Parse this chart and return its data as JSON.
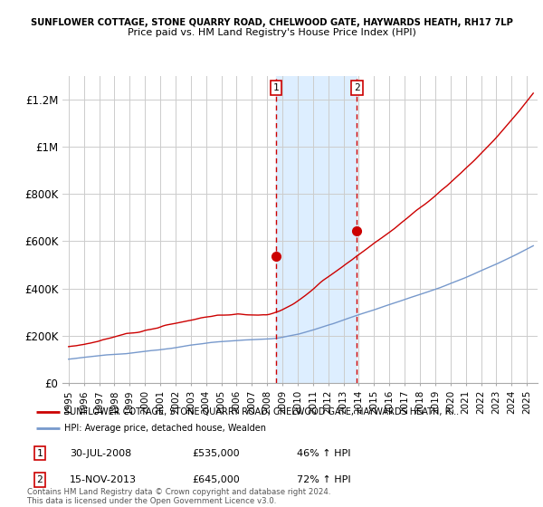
{
  "title_line1": "SUNFLOWER COTTAGE, STONE QUARRY ROAD, CHELWOOD GATE, HAYWARDS HEATH, RH17 7LP",
  "title_line2": "Price paid vs. HM Land Registry's House Price Index (HPI)",
  "ylim": [
    0,
    1300000
  ],
  "yticks": [
    0,
    200000,
    400000,
    600000,
    800000,
    1000000,
    1200000
  ],
  "ytick_labels": [
    "£0",
    "£200K",
    "£400K",
    "£600K",
    "£800K",
    "£1M",
    "£1.2M"
  ],
  "year_start": 1995,
  "year_end": 2025,
  "purchase_years_float": [
    2008.575,
    2013.875
  ],
  "purchase_prices": [
    535000,
    645000
  ],
  "purchase_labels": [
    "1",
    "2"
  ],
  "hpi_color": "#7799cc",
  "price_color": "#cc0000",
  "shaded_region_color": "#ddeeff",
  "legend_label_price": "SUNFLOWER COTTAGE, STONE QUARRY ROAD, CHELWOOD GATE, HAYWARDS HEATH, R...",
  "legend_label_hpi": "HPI: Average price, detached house, Wealden",
  "annotation1_label": "1",
  "annotation1_date": "30-JUL-2008",
  "annotation1_price": "£535,000",
  "annotation1_hpi": "46% ↑ HPI",
  "annotation2_label": "2",
  "annotation2_date": "15-NOV-2013",
  "annotation2_price": "£645,000",
  "annotation2_hpi": "72% ↑ HPI",
  "footer": "Contains HM Land Registry data © Crown copyright and database right 2024.\nThis data is licensed under the Open Government Licence v3.0."
}
